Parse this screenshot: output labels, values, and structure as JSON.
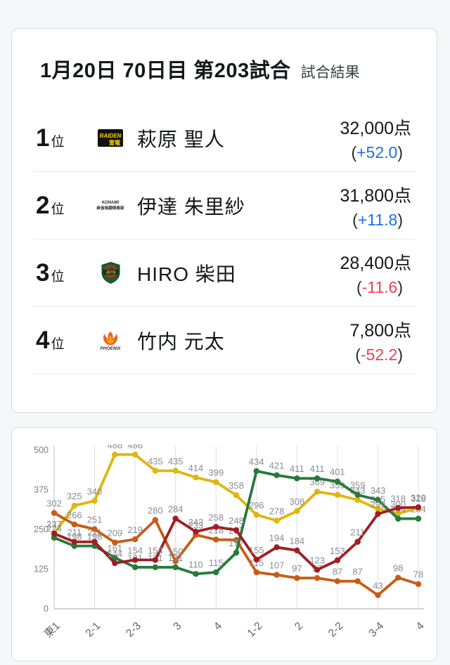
{
  "result_card": {
    "title": "1月20日 70日目 第203試合",
    "subtitle": "試合結果",
    "paren_open": "(",
    "paren_close": ")",
    "rank_suffix": "位",
    "rows": [
      {
        "rank": "1",
        "team": "raiden",
        "logo_text": "RAIDEN",
        "logo_sub": "雷電",
        "name": "萩原 聖人",
        "points": "32,000点",
        "diff": "+52.0",
        "diff_color": "#1f6ee8"
      },
      {
        "rank": "2",
        "team": "konami",
        "logo_text": "KONAMI",
        "logo_sub": "麻雀格闘倶楽部",
        "name": "伊達 朱里紗",
        "points": "31,800点",
        "diff": "+11.8",
        "diff_color": "#1f6ee8"
      },
      {
        "rank": "3",
        "team": "jets",
        "logo_text": "JETS",
        "logo_sub": "",
        "name": "HIRO 柴田",
        "points": "28,400点",
        "diff": "-11.6",
        "diff_color": "#e84358"
      },
      {
        "rank": "4",
        "team": "phoenix",
        "logo_text": "PHOENIX",
        "logo_sub": "",
        "name": "竹内 元太",
        "points": "7,800点",
        "diff": "-52.2",
        "diff_color": "#e84358"
      }
    ]
  },
  "chart_data": {
    "type": "line",
    "title": "",
    "xlabel": "",
    "ylabel": "",
    "ylim": [
      0,
      500
    ],
    "y_ticks": [
      0,
      125,
      250,
      375,
      500
    ],
    "x_tick_labels": [
      "東1",
      "2-1",
      "2-3",
      "3",
      "4",
      "1-2",
      "2",
      "2-2",
      "3-4",
      "4"
    ],
    "x_tick_every": 2,
    "grid": "vertical",
    "legend": "none",
    "point_count": 19,
    "series": [
      {
        "name": "伊達 朱里紗",
        "color": "#e0b50f",
        "values": [
          237,
          325,
          340,
          486,
          486,
          435,
          435,
          414,
          399,
          358,
          296,
          278,
          308,
          369,
          359,
          343,
          315,
          300,
          318
        ]
      },
      {
        "name": "竹内 元太",
        "color": "#c75c15",
        "values": [
          302,
          266,
          251,
          209,
          219,
          280,
          150,
          233,
          218,
          217,
          115,
          107,
          97,
          97,
          87,
          87,
          43,
          98,
          78
        ]
      },
      {
        "name": "HIRO 柴田",
        "color": "#27793c",
        "values": [
          224,
          198,
          198,
          161,
          131,
          131,
          131,
          110,
          115,
          177,
          434,
          421,
          411,
          411,
          401,
          359,
          343,
          284,
          284
        ]
      },
      {
        "name": "萩原 聖人",
        "color": "#a11d22",
        "values": [
          237,
          211,
          211,
          144,
          154,
          154,
          284,
          243,
          258,
          248,
          155,
          194,
          184,
          123,
          153,
          211,
          299,
          318,
          320
        ]
      }
    ]
  }
}
